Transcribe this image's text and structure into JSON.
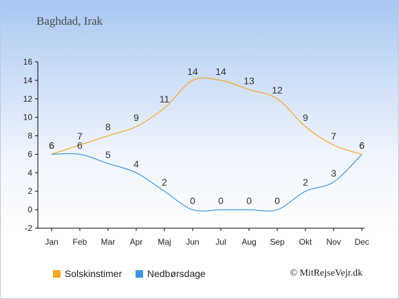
{
  "title": "Baghdad, Irak",
  "credit": "© MitRejseVejr.dk",
  "chart_data": {
    "type": "line",
    "categories": [
      "Jan",
      "Feb",
      "Mar",
      "Apr",
      "Maj",
      "Jun",
      "Jul",
      "Aug",
      "Sep",
      "Okt",
      "Nov",
      "Dec"
    ],
    "ylim": [
      -2,
      16
    ],
    "yticks": [
      -2,
      0,
      2,
      4,
      6,
      8,
      10,
      12,
      14,
      16
    ],
    "grid": false,
    "legend_position": "bottom",
    "series": [
      {
        "name": "Solskinstimer",
        "color": "#f5a623",
        "values": [
          6,
          7,
          8,
          9,
          11,
          14,
          14,
          13,
          12,
          9,
          7,
          6
        ]
      },
      {
        "name": "Nedbørsdage",
        "color": "#3d98e0",
        "values": [
          6,
          6,
          5,
          4,
          2,
          0,
          0,
          0,
          0,
          2,
          3,
          6
        ]
      }
    ]
  }
}
